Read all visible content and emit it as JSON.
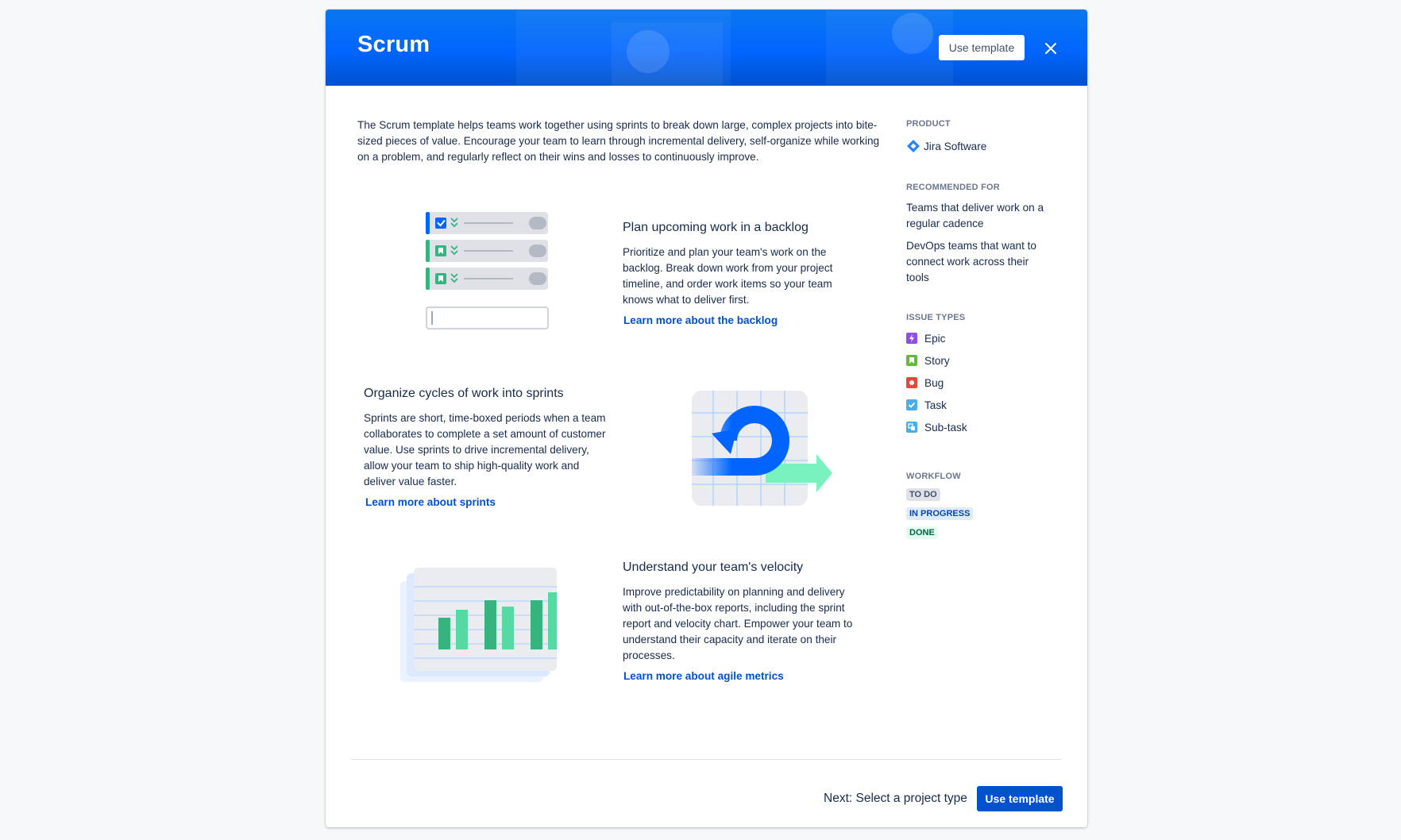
{
  "header": {
    "title": "Scrum",
    "use_template_label": "Use template"
  },
  "description": "The Scrum template helps teams work together using sprints to break down large, complex projects into bite-sized pieces of value. Encourage your team to learn through incremental delivery, self-organize while working on a problem, and regularly reflect on their wins and losses to continuously improve.",
  "features": [
    {
      "title": "Plan upcoming work in a backlog",
      "body": "Prioritize and plan your team's work on the backlog. Break down work from your project timeline, and order work items so your team knows what to deliver first.",
      "link": "Learn more about the backlog"
    },
    {
      "title": "Organize cycles of work into sprints",
      "body": "Sprints are short, time-boxed periods when a team collaborates to complete a set amount of customer value. Use sprints to drive incremental delivery, allow your team to ship high-quality work and deliver value faster.",
      "link": "Learn more about sprints"
    },
    {
      "title": "Understand your team's velocity",
      "body": "Improve predictability on planning and delivery with out-of-the-box reports, including the sprint report and velocity chart. Empower your team to understand their capacity and iterate on their processes.",
      "link": "Learn more about agile metrics"
    }
  ],
  "sidebar": {
    "product_heading": "PRODUCT",
    "product_name": "Jira Software",
    "recommended_heading": "RECOMMENDED FOR",
    "recommended": [
      "Teams that deliver work on a regular cadence",
      "DevOps teams that want to connect work across their tools"
    ],
    "issue_types_heading": "ISSUE TYPES",
    "issue_types": [
      {
        "label": "Epic",
        "icon": "epic-icon",
        "color": "#904ee2"
      },
      {
        "label": "Story",
        "icon": "story-icon",
        "color": "#63ba3c"
      },
      {
        "label": "Bug",
        "icon": "bug-icon",
        "color": "#e5493a"
      },
      {
        "label": "Task",
        "icon": "task-icon",
        "color": "#4bade8"
      },
      {
        "label": "Sub-task",
        "icon": "subtask-icon",
        "color": "#4bade8"
      }
    ],
    "workflow_heading": "WORKFLOW",
    "workflow": [
      {
        "label": "TO DO",
        "bg": "#dfe1e6",
        "fg": "#42526e"
      },
      {
        "label": "IN PROGRESS",
        "bg": "#deebff",
        "fg": "#0747a6"
      },
      {
        "label": "DONE",
        "bg": "#e3fcef",
        "fg": "#006644"
      }
    ]
  },
  "footer": {
    "next_label": "Next: Select a project type",
    "use_template_label": "Use template"
  },
  "colors": {
    "primary": "#0052cc",
    "header_blue": "#0065ff",
    "link": "#0052cc",
    "text": "#172b4d",
    "green_bar": "#36b37e",
    "green_light": "#57d9a3"
  }
}
